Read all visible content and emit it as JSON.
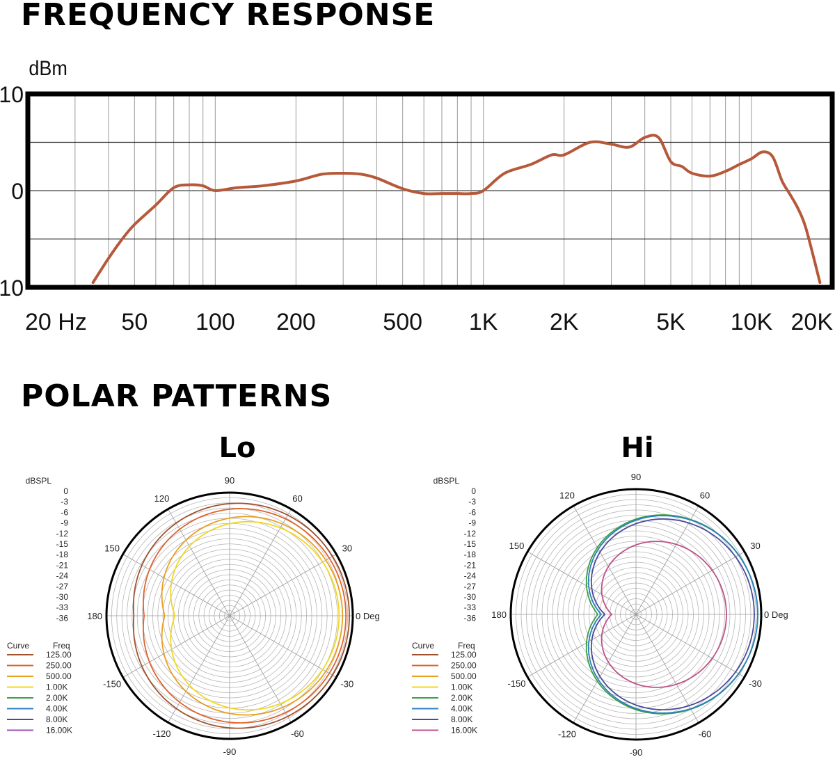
{
  "frequency_section": {
    "title": "FREQUENCY RESPONSE"
  },
  "polar_section": {
    "title": "POLAR PATTERNS",
    "lo_title": "Lo",
    "hi_title": "Hi"
  },
  "chart_data": [
    {
      "type": "line",
      "title": "FREQUENCY RESPONSE",
      "ylabel": "dBm",
      "x_scale": "log",
      "xlim": [
        20,
        20000
      ],
      "ylim": [
        -10,
        10
      ],
      "y_ticks": [
        "10",
        "0",
        "-10"
      ],
      "y_tick_values": [
        10,
        0,
        -10
      ],
      "y_gridlines": [
        5,
        0,
        -5
      ],
      "x_ticks": [
        "20 Hz",
        "50",
        "100",
        "200",
        "500",
        "1K",
        "2K",
        "5K",
        "10K",
        "20K"
      ],
      "x_tick_values": [
        20,
        50,
        100,
        200,
        500,
        1000,
        2000,
        5000,
        10000,
        20000
      ],
      "color": "#b5593a",
      "series": [
        {
          "x": [
            35,
            40,
            45,
            50,
            60,
            70,
            80,
            90,
            100,
            120,
            150,
            200,
            250,
            300,
            350,
            400,
            500,
            600,
            700,
            800,
            900,
            1000,
            1200,
            1500,
            1800,
            2000,
            2500,
            3000,
            3500,
            4000,
            4500,
            5000,
            5500,
            6000,
            7000,
            8000,
            9000,
            10000,
            11000,
            12000,
            13000,
            14000,
            15000,
            16000,
            18000
          ],
          "y": [
            -9.5,
            -7,
            -5,
            -3.5,
            -1.5,
            0.3,
            0.6,
            0.5,
            0,
            0.3,
            0.5,
            1,
            1.7,
            1.8,
            1.7,
            1.3,
            0.2,
            -0.3,
            -0.3,
            -0.3,
            -0.3,
            0,
            1.8,
            2.7,
            3.7,
            3.7,
            5,
            4.8,
            4.5,
            5.5,
            5.5,
            3,
            2.5,
            1.8,
            1.5,
            2,
            2.7,
            3.3,
            4,
            3.5,
            1,
            -0.5,
            -2,
            -4,
            -9.5
          ]
        }
      ]
    },
    {
      "type": "polar",
      "title": "Lo",
      "radial_label": "dBSPL",
      "radial_ticks": [
        "0",
        "-3",
        "-6",
        "-9",
        "-12",
        "-15",
        "-18",
        "-21",
        "-24",
        "-27",
        "-30",
        "-33",
        "-36"
      ],
      "angle_ticks": [
        "90",
        "60",
        "30",
        "0 Deg",
        "-30",
        "-60",
        "-90",
        "-120",
        "-150",
        "180",
        "150",
        "120"
      ],
      "legend_header": [
        "Curve",
        "Freq"
      ],
      "legend": [
        {
          "freq": "125.00",
          "color": "#a0522d"
        },
        {
          "freq": "250.00",
          "color": "#e0622d"
        },
        {
          "freq": "500.00",
          "color": "#e8a020"
        },
        {
          "freq": "1.00K",
          "color": "#f0d820"
        },
        {
          "freq": "2.00K",
          "color": "#3aa040"
        },
        {
          "freq": "4.00K",
          "color": "#2a80c0"
        },
        {
          "freq": "8.00K",
          "color": "#4a4a9a"
        },
        {
          "freq": "16.00K",
          "color": "#9a50b0"
        }
      ],
      "curves": [
        {
          "freq": "125.00",
          "front_db": -1,
          "rear_db": -8
        },
        {
          "freq": "250.00",
          "front_db": -2,
          "rear_db": -11
        },
        {
          "freq": "500.00",
          "front_db": -3,
          "rear_db": -17
        },
        {
          "freq": "1.00K",
          "front_db": -4,
          "rear_db": -20
        }
      ]
    },
    {
      "type": "polar",
      "title": "Hi",
      "radial_label": "dBSPL",
      "radial_ticks": [
        "0",
        "-3",
        "-6",
        "-9",
        "-12",
        "-15",
        "-18",
        "-21",
        "-24",
        "-27",
        "-30",
        "-33",
        "-36"
      ],
      "angle_ticks": [
        "90",
        "60",
        "30",
        "0 Deg",
        "-30",
        "-60",
        "-90",
        "-120",
        "-150",
        "180",
        "150",
        "120"
      ],
      "legend_header": [
        "Curve",
        "Freq"
      ],
      "legend": [
        {
          "freq": "125.00",
          "color": "#a0522d"
        },
        {
          "freq": "250.00",
          "color": "#e0622d"
        },
        {
          "freq": "500.00",
          "color": "#e8a020"
        },
        {
          "freq": "1.00K",
          "color": "#f0d820"
        },
        {
          "freq": "2.00K",
          "color": "#3aa040"
        },
        {
          "freq": "4.00K",
          "color": "#2a80c0"
        },
        {
          "freq": "8.00K",
          "color": "#4a4a9a"
        },
        {
          "freq": "16.00K",
          "color": "#c0508a"
        }
      ],
      "curves": [
        {
          "freq": "2.00K",
          "front_db": -1,
          "rear_db": -25
        },
        {
          "freq": "4.00K",
          "front_db": -1,
          "rear_db": -26
        },
        {
          "freq": "8.00K",
          "front_db": -2,
          "rear_db": -27
        },
        {
          "freq": "16.00K",
          "front_db": -10,
          "rear_db": -29
        }
      ]
    }
  ]
}
